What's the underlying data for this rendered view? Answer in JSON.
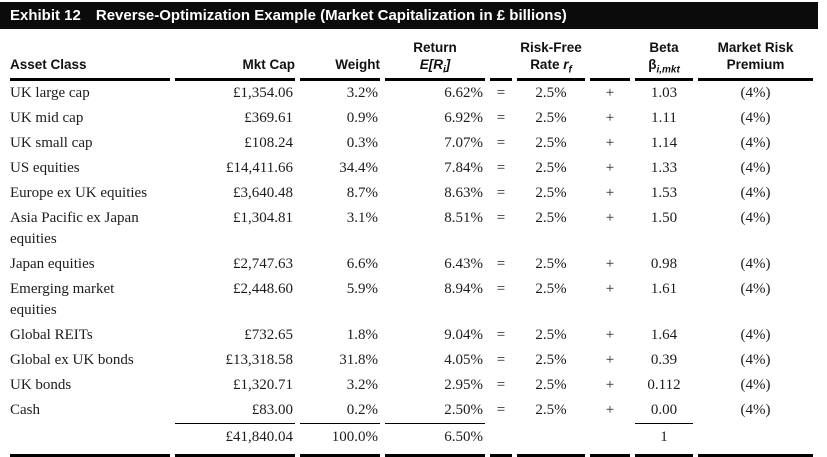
{
  "exhibit": {
    "label": "Exhibit 12",
    "title": "Reverse-Optimization Example (Market Capitalization in £ billions)"
  },
  "table": {
    "headers": {
      "asset_class": "Asset Class",
      "mkt_cap": "Mkt Cap",
      "weight": "Weight",
      "return": {
        "line1": "Return",
        "pre": "E[R",
        "sub": "i",
        "post": "]"
      },
      "risk_free": {
        "line1": "Risk-Free",
        "pre": "Rate ",
        "var": "r",
        "sub": "f"
      },
      "beta": {
        "line1": "Beta",
        "pre": "β",
        "sub": "i,mkt"
      },
      "market_risk": {
        "line1": "Market Risk",
        "line2": "Premium"
      }
    },
    "rows": [
      {
        "asset": "UK large cap",
        "mkt_cap": "£1,354.06",
        "weight": "3.2%",
        "ret": "6.62%",
        "eq": "=",
        "rf": "2.5%",
        "plus": "+",
        "beta": "1.03",
        "mrp": "(4%)"
      },
      {
        "asset": "UK mid cap",
        "mkt_cap": "£369.61",
        "weight": "0.9%",
        "ret": "6.92%",
        "eq": "=",
        "rf": "2.5%",
        "plus": "+",
        "beta": "1.11",
        "mrp": "(4%)"
      },
      {
        "asset": "UK small cap",
        "mkt_cap": "£108.24",
        "weight": "0.3%",
        "ret": "7.07%",
        "eq": "=",
        "rf": "2.5%",
        "plus": "+",
        "beta": "1.14",
        "mrp": "(4%)"
      },
      {
        "asset": "US equities",
        "mkt_cap": "£14,411.66",
        "weight": "34.4%",
        "ret": "7.84%",
        "eq": "=",
        "rf": "2.5%",
        "plus": "+",
        "beta": "1.33",
        "mrp": "(4%)"
      },
      {
        "asset": "Europe ex UK equities",
        "mkt_cap": "£3,640.48",
        "weight": "8.7%",
        "ret": "8.63%",
        "eq": "=",
        "rf": "2.5%",
        "plus": "+",
        "beta": "1.53",
        "mrp": "(4%)"
      },
      {
        "asset": "Asia Pacific ex Japan\nequities",
        "mkt_cap": "£1,304.81",
        "weight": "3.1%",
        "ret": "8.51%",
        "eq": "=",
        "rf": "2.5%",
        "plus": "+",
        "beta": "1.50",
        "mrp": "(4%)"
      },
      {
        "asset": "Japan equities",
        "mkt_cap": "£2,747.63",
        "weight": "6.6%",
        "ret": "6.43%",
        "eq": "=",
        "rf": "2.5%",
        "plus": "+",
        "beta": "0.98",
        "mrp": "(4%)"
      },
      {
        "asset": "Emerging market\nequities",
        "mkt_cap": "£2,448.60",
        "weight": "5.9%",
        "ret": "8.94%",
        "eq": "=",
        "rf": "2.5%",
        "plus": "+",
        "beta": "1.61",
        "mrp": "(4%)"
      },
      {
        "asset": "Global REITs",
        "mkt_cap": "£732.65",
        "weight": "1.8%",
        "ret": "9.04%",
        "eq": "=",
        "rf": "2.5%",
        "plus": "+",
        "beta": "1.64",
        "mrp": "(4%)"
      },
      {
        "asset": "Global ex UK bonds",
        "mkt_cap": "£13,318.58",
        "weight": "31.8%",
        "ret": "4.05%",
        "eq": "=",
        "rf": "2.5%",
        "plus": "+",
        "beta": "0.39",
        "mrp": "(4%)"
      },
      {
        "asset": "UK bonds",
        "mkt_cap": "£1,320.71",
        "weight": "3.2%",
        "ret": "2.95%",
        "eq": "=",
        "rf": "2.5%",
        "plus": "+",
        "beta": "0.112",
        "mrp": "(4%)"
      },
      {
        "asset": "Cash",
        "mkt_cap": "£83.00",
        "weight": "0.2%",
        "ret": "2.50%",
        "eq": "=",
        "rf": "2.5%",
        "plus": "+",
        "beta": "0.00",
        "mrp": "(4%)",
        "subtotal_rule": true
      }
    ],
    "totals": {
      "mkt_cap": "£41,840.04",
      "weight": "100.0%",
      "ret": "6.50%",
      "beta": "1"
    }
  },
  "colors": {
    "bar_bg": "#0b0b0b",
    "bar_text": "#ffffff",
    "body_text": "#1c1c1c",
    "rule": "#000000"
  }
}
